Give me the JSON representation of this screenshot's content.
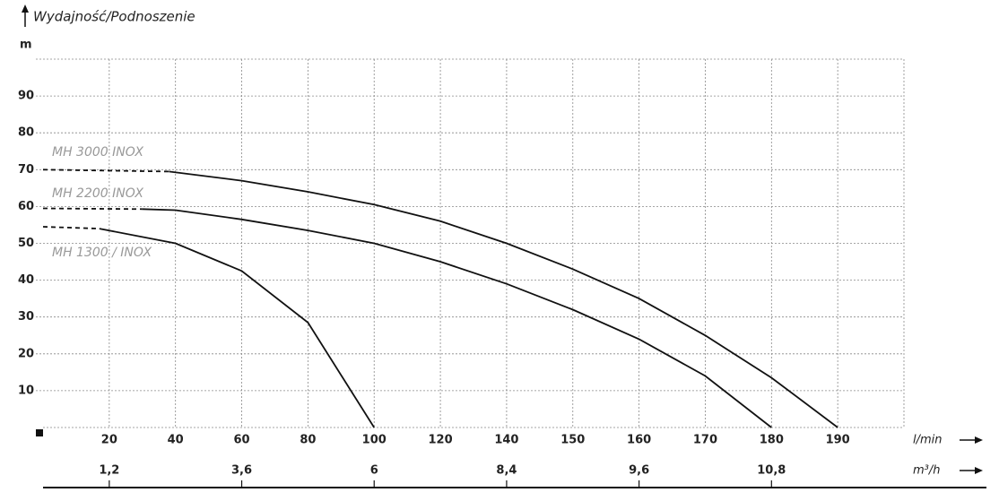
{
  "chart_data": {
    "type": "line",
    "title": "Wydajność/Podnoszenie",
    "y_label": "m",
    "x_label": "l/min",
    "x2_label": "m³/h",
    "xlim": [
      0,
      200
    ],
    "xticks": [
      20,
      40,
      60,
      80,
      100,
      120,
      140,
      150,
      160,
      170,
      180,
      190
    ],
    "x2lim": [
      0,
      12
    ],
    "x2ticks": [
      {
        "value": 1.2,
        "label": "1,2"
      },
      {
        "value": 3.6,
        "label": "3,6"
      },
      {
        "value": 6,
        "label": "6"
      },
      {
        "value": 8.4,
        "label": "8,4"
      },
      {
        "value": 9.6,
        "label": "9,6"
      },
      {
        "value": 10.8,
        "label": "10,8"
      }
    ],
    "ylim": [
      0,
      100
    ],
    "yticks": [
      10,
      20,
      30,
      40,
      50,
      60,
      70,
      80,
      90
    ],
    "grid": true,
    "dashed_segments": 1,
    "series": [
      {
        "name": "MH 3000 INOX",
        "color": "#111111",
        "x": [
          0,
          38,
          60,
          80,
          100,
          120,
          140,
          150,
          160,
          170,
          180,
          190
        ],
        "values": [
          70,
          69.5,
          67,
          64,
          60.5,
          56,
          50,
          43,
          35,
          25,
          13.5,
          0
        ]
      },
      {
        "name": "MH 2200 INOX",
        "color": "#111111",
        "x": [
          0,
          30,
          40,
          60,
          80,
          100,
          120,
          140,
          150,
          160,
          170,
          180
        ],
        "values": [
          59.5,
          59.3,
          59,
          56.5,
          53.5,
          50,
          45,
          39,
          32,
          24,
          14,
          0
        ]
      },
      {
        "name": "MH 1300  / INOX",
        "color": "#111111",
        "x": [
          0,
          17,
          40,
          60,
          80,
          100
        ],
        "values": [
          54.5,
          54,
          50,
          42.5,
          28.5,
          0
        ]
      }
    ]
  }
}
